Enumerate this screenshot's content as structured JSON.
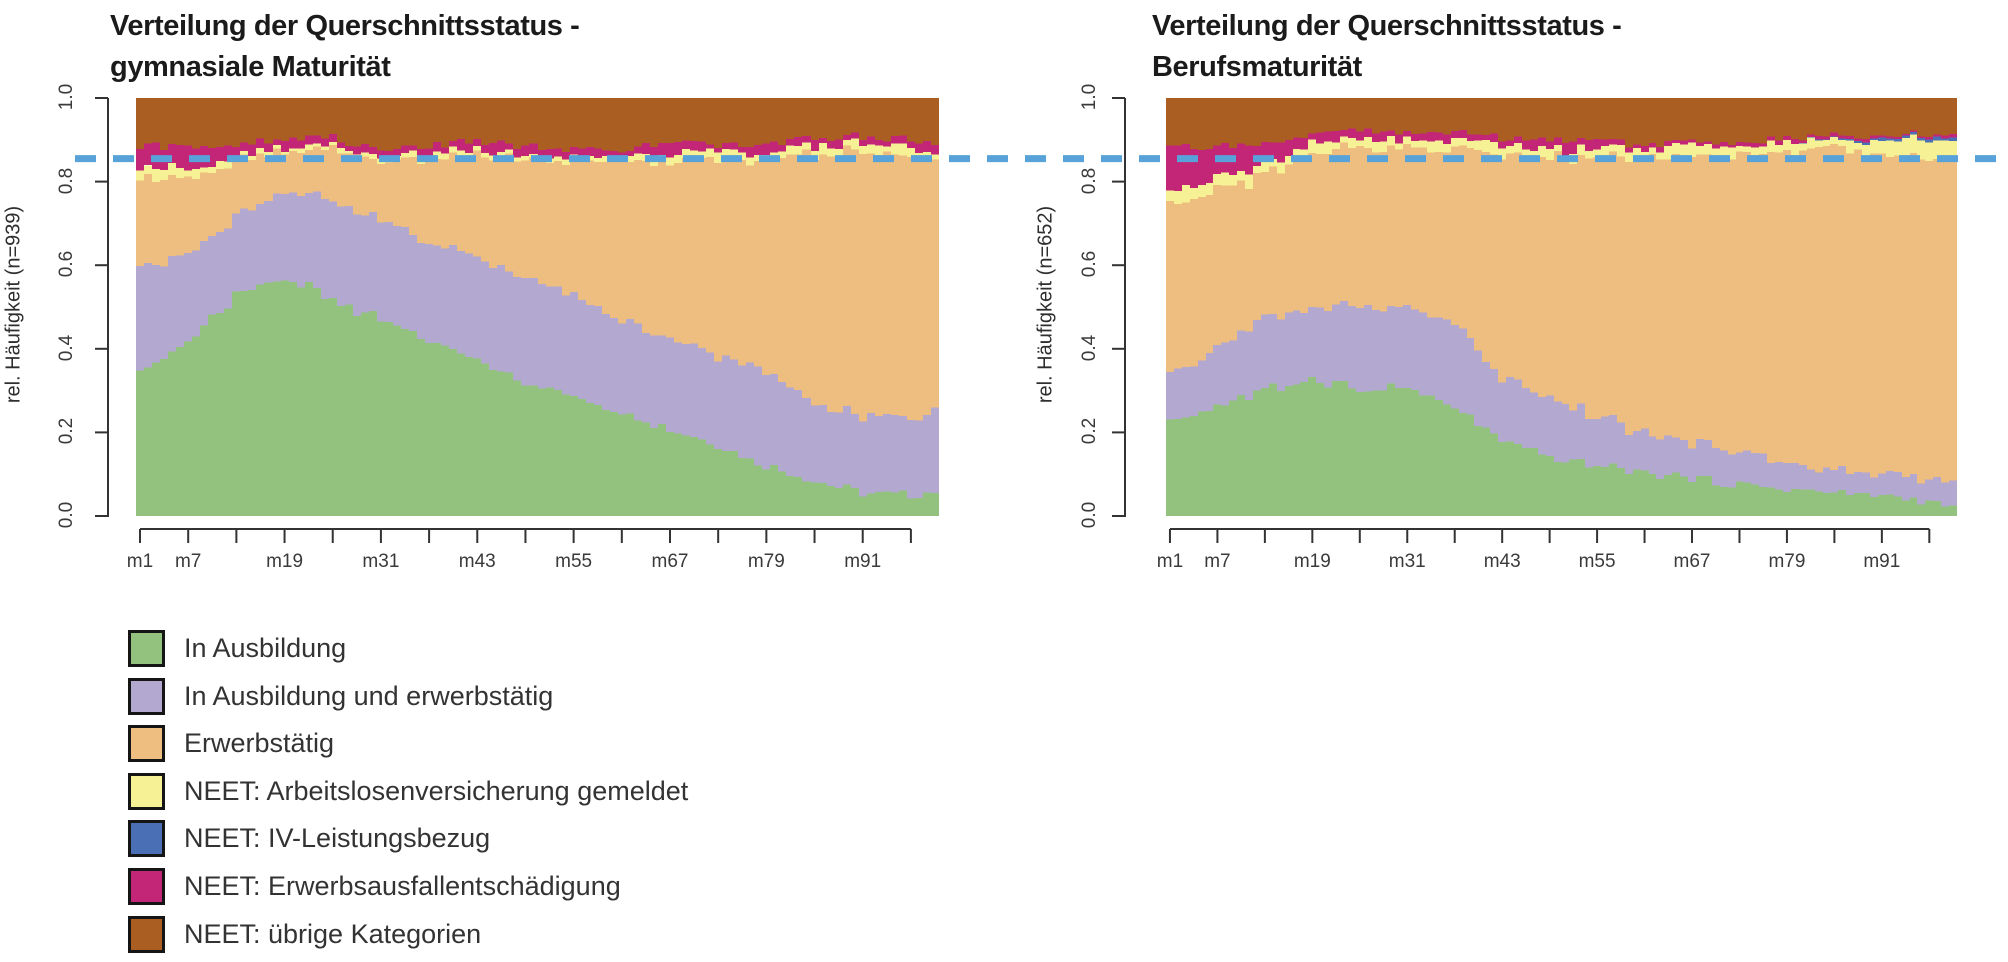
{
  "figure": {
    "background": "#ffffff"
  },
  "reference_line": {
    "value": 0.855,
    "color": "#57a2d8",
    "style": "dashed"
  },
  "palette": {
    "in_ausbildung": "#92c27d",
    "ausbildung_erwerbstaetig": "#b3a8d0",
    "erwerbstaetig": "#eebd80",
    "neet_alv": "#f6f194",
    "neet_iv": "#4a6fb4",
    "neet_erwerbsausfall": "#c32577",
    "neet_uebrige": "#aa5e21",
    "axis": "#333333",
    "title_text": "#1b1b1b"
  },
  "axes": {
    "y_ticks": [
      "0.0",
      "0.2",
      "0.4",
      "0.6",
      "0.8",
      "1.0"
    ],
    "x_tick_labels": [
      "m1",
      "m7",
      "m19",
      "m31",
      "m43",
      "m55",
      "m67",
      "m79",
      "m91"
    ],
    "x_label_months": [
      1,
      7,
      19,
      31,
      43,
      55,
      67,
      79,
      91
    ],
    "x_tick_step_months": 6,
    "x_last_tick_month": 97
  },
  "legend": {
    "items": [
      {
        "label": "In Ausbildung",
        "color": "#92c27d"
      },
      {
        "label": "In Ausbildung und erwerbstätig",
        "color": "#b3a8d0"
      },
      {
        "label": "Erwerbstätig",
        "color": "#eebd80"
      },
      {
        "label": "NEET: Arbeitslosenversicherung gemeldet",
        "color": "#f6f194"
      },
      {
        "label": "NEET: IV-Leistungsbezug",
        "color": "#4a6fb4"
      },
      {
        "label": "NEET: Erwerbsausfallentschädigung",
        "color": "#c32577"
      },
      {
        "label": "NEET: übrige Kategorien",
        "color": "#aa5e21"
      }
    ]
  },
  "chart_data": [
    {
      "type": "bar",
      "stacked": true,
      "title_line1": "Verteilung der Querschnittsstatus -",
      "title_line2": "gymnasiale Maturität",
      "n": 939,
      "ylabel": "rel. Häufigkeit (n=939)",
      "ylim": [
        0,
        1
      ],
      "n_months": 100,
      "x_months": [
        1,
        7,
        13,
        19,
        25,
        31,
        37,
        43,
        49,
        55,
        61,
        67,
        73,
        79,
        85,
        91,
        97,
        100
      ],
      "series": [
        {
          "name": "In Ausbildung",
          "color": "#92c27d",
          "values": [
            0.34,
            0.42,
            0.53,
            0.575,
            0.52,
            0.47,
            0.42,
            0.37,
            0.325,
            0.285,
            0.25,
            0.21,
            0.17,
            0.12,
            0.085,
            0.055,
            0.05,
            0.06
          ]
        },
        {
          "name": "In Ausbildung und erwerbstätig",
          "color": "#b3a8d0",
          "values": [
            0.245,
            0.21,
            0.19,
            0.205,
            0.235,
            0.24,
            0.235,
            0.245,
            0.25,
            0.245,
            0.22,
            0.22,
            0.22,
            0.23,
            0.185,
            0.185,
            0.18,
            0.2
          ]
        },
        {
          "name": "Erwerbstätig",
          "color": "#eebd80",
          "values": [
            0.215,
            0.18,
            0.13,
            0.095,
            0.125,
            0.14,
            0.2,
            0.245,
            0.28,
            0.32,
            0.375,
            0.425,
            0.465,
            0.5,
            0.595,
            0.635,
            0.63,
            0.595
          ]
        },
        {
          "name": "NEET: Arbeitslosenversicherung gemeldet",
          "color": "#f6f194",
          "values": [
            0.025,
            0.02,
            0.015,
            0.01,
            0.01,
            0.01,
            0.015,
            0.015,
            0.01,
            0.01,
            0.01,
            0.015,
            0.02,
            0.015,
            0.02,
            0.02,
            0.02,
            0.02
          ]
        },
        {
          "name": "NEET: IV-Leistungsbezug",
          "color": "#4a6fb4",
          "values": [
            0,
            0,
            0,
            0,
            0,
            0,
            0,
            0,
            0,
            0,
            0,
            0,
            0,
            0,
            0,
            0,
            0,
            0
          ]
        },
        {
          "name": "NEET: Erwerbsausfallentschädigung",
          "color": "#c32577",
          "values": [
            0.06,
            0.05,
            0.025,
            0.02,
            0.015,
            0.015,
            0.015,
            0.025,
            0.02,
            0.02,
            0.02,
            0.025,
            0.015,
            0.02,
            0.02,
            0.015,
            0.02,
            0.02
          ]
        },
        {
          "name": "NEET: übrige Kategorien",
          "color": "#aa5e21",
          "values": [
            0.115,
            0.12,
            0.11,
            0.095,
            0.095,
            0.125,
            0.115,
            0.1,
            0.115,
            0.12,
            0.125,
            0.105,
            0.11,
            0.115,
            0.095,
            0.09,
            0.1,
            0.105
          ]
        }
      ]
    },
    {
      "type": "bar",
      "stacked": true,
      "title_line1": "Verteilung der Querschnittsstatus -",
      "title_line2": "Berufsmaturität",
      "n": 652,
      "ylabel": "rel. Häufigkeit (n=652)",
      "ylim": [
        0,
        1
      ],
      "n_months": 100,
      "x_months": [
        1,
        7,
        13,
        19,
        25,
        31,
        37,
        43,
        49,
        55,
        61,
        67,
        73,
        79,
        85,
        91,
        97,
        100
      ],
      "series": [
        {
          "name": "In Ausbildung",
          "color": "#92c27d",
          "values": [
            0.23,
            0.26,
            0.3,
            0.33,
            0.3,
            0.31,
            0.26,
            0.18,
            0.14,
            0.12,
            0.105,
            0.09,
            0.075,
            0.065,
            0.055,
            0.05,
            0.035,
            0.02
          ]
        },
        {
          "name": "In Ausbildung und erwerbstätig",
          "color": "#b3a8d0",
          "values": [
            0.105,
            0.14,
            0.17,
            0.17,
            0.2,
            0.19,
            0.2,
            0.15,
            0.14,
            0.115,
            0.095,
            0.085,
            0.075,
            0.065,
            0.05,
            0.05,
            0.06,
            0.07
          ]
        },
        {
          "name": "Erwerbstätig",
          "color": "#eebd80",
          "values": [
            0.41,
            0.37,
            0.34,
            0.37,
            0.385,
            0.378,
            0.418,
            0.53,
            0.575,
            0.615,
            0.655,
            0.685,
            0.715,
            0.745,
            0.773,
            0.77,
            0.77,
            0.77
          ]
        },
        {
          "name": "NEET: Arbeitslosenversicherung gemeldet",
          "color": "#f6f194",
          "values": [
            0.03,
            0.035,
            0.025,
            0.025,
            0.02,
            0.02,
            0.02,
            0.025,
            0.02,
            0.022,
            0.022,
            0.025,
            0.02,
            0.02,
            0.02,
            0.03,
            0.04,
            0.05
          ]
        },
        {
          "name": "NEET: IV-Leistungsbezug",
          "color": "#4a6fb4",
          "values": [
            0,
            0,
            0,
            0,
            0,
            0,
            0,
            0,
            0,
            0,
            0,
            0,
            0,
            0,
            0.003,
            0.006,
            0.007,
            0.008
          ]
        },
        {
          "name": "NEET: Erwerbsausfallentschädigung",
          "color": "#c32577",
          "values": [
            0.105,
            0.075,
            0.055,
            0.025,
            0.02,
            0.02,
            0.017,
            0.02,
            0.023,
            0.024,
            0.011,
            0.009,
            0.008,
            0.01,
            0.007,
            0.006,
            0.006,
            0.006
          ]
        },
        {
          "name": "NEET: übrige Kategorien",
          "color": "#aa5e21",
          "values": [
            0.12,
            0.12,
            0.11,
            0.08,
            0.075,
            0.082,
            0.085,
            0.095,
            0.102,
            0.104,
            0.112,
            0.106,
            0.107,
            0.095,
            0.092,
            0.088,
            0.082,
            0.076
          ]
        }
      ]
    }
  ]
}
